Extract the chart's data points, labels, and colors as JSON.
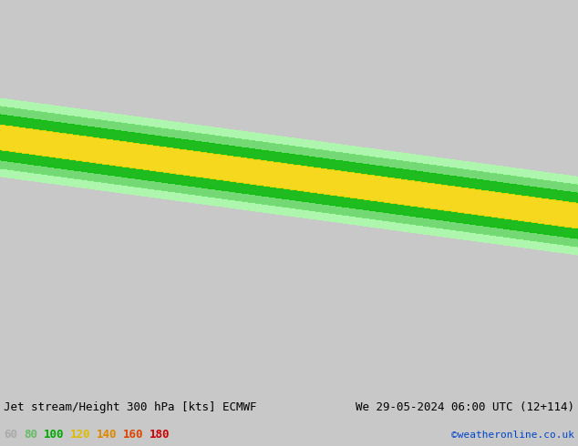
{
  "title_left": "Jet stream/Height 300 hPa [kts] ECMWF",
  "title_right": "We 29-05-2024 06:00 UTC (12+114)",
  "credit": "©weatheronline.co.uk",
  "legend_values": [
    "60",
    "80",
    "100",
    "120",
    "140",
    "160",
    "180"
  ],
  "legend_colors": [
    "#aaffaa",
    "#66dd66",
    "#00bb00",
    "#ffdd00",
    "#ffaa00",
    "#ff6600",
    "#ff0000"
  ],
  "background_color": "#e8e8e8",
  "map_bg": "#d0d0d0",
  "figsize": [
    6.34,
    4.9
  ],
  "dpi": 100
}
